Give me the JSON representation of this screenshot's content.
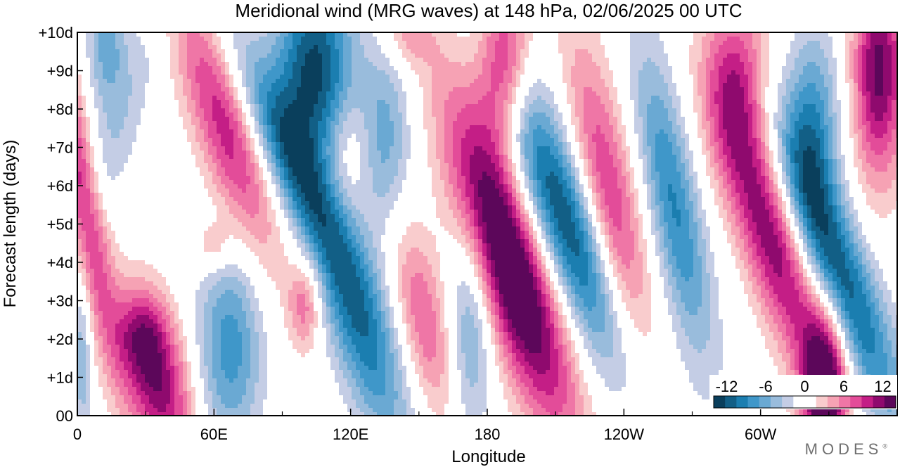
{
  "chart_data": {
    "type": "heatmap",
    "title": "Meridional wind (MRG waves) at  148 hPa,  02/06/2025  00 UTC",
    "xlabel": "Longitude",
    "ylabel": "Forecast length (days)",
    "x_ticks": [
      "0",
      "60E",
      "120E",
      "180",
      "120W",
      "60W"
    ],
    "x_tick_values": [
      0,
      60,
      120,
      180,
      240,
      300
    ],
    "xlim": [
      0,
      360
    ],
    "y_ticks": [
      "00",
      "+1d",
      "+2d",
      "+3d",
      "+4d",
      "+5d",
      "+6d",
      "+7d",
      "+8d",
      "+9d",
      "+10d"
    ],
    "ylim": [
      0,
      10
    ],
    "colorbar": {
      "tick_labels": [
        "-12",
        "-6",
        "0",
        "6",
        "12"
      ],
      "tick_values": [
        -12,
        -6,
        0,
        6,
        12
      ],
      "range": [
        -14,
        14
      ],
      "colors": [
        "#0a3f5c",
        "#125f86",
        "#1b7eb0",
        "#3f97c9",
        "#6aa9d3",
        "#99bcdc",
        "#c4cde5",
        "#ffffff",
        "#ffffff",
        "#f9cccd",
        "#f6a2b4",
        "#ef76a6",
        "#e34c99",
        "#c41e86",
        "#8f0a6e",
        "#5c075a"
      ]
    },
    "features": [
      {
        "lon": 2,
        "day": 5.8,
        "value": 10,
        "lon_width": 6,
        "day_width": 3.0,
        "tilt": -3
      },
      {
        "lon": 2,
        "day": 1.5,
        "value": -5,
        "lon_width": 3,
        "day_width": 1.5,
        "tilt": 0
      },
      {
        "lon": 13,
        "day": 9.7,
        "value": -6,
        "lon_width": 6,
        "day_width": 1.2,
        "tilt": 0
      },
      {
        "lon": 18,
        "day": 7.5,
        "value": -3,
        "lon_width": 8,
        "day_width": 2.2,
        "tilt": 5
      },
      {
        "lon": 35,
        "day": 0.9,
        "value": 12,
        "lon_width": 10,
        "day_width": 1.5,
        "tilt": -3
      },
      {
        "lon": 28,
        "day": 2.2,
        "value": 5,
        "lon_width": 8,
        "day_width": 0.8,
        "tilt": 0
      },
      {
        "lon": 65,
        "day": 7.6,
        "value": 10,
        "lon_width": 10,
        "day_width": 2.5,
        "tilt": -5
      },
      {
        "lon": 67,
        "day": 1.8,
        "value": -8,
        "lon_width": 10,
        "day_width": 1.8,
        "tilt": 0
      },
      {
        "lon": 60,
        "day": 4.4,
        "value": 4,
        "lon_width": 6,
        "day_width": 0.5,
        "tilt": 0
      },
      {
        "lon": 104,
        "day": 9.0,
        "value": -13,
        "lon_width": 12,
        "day_width": 1.8,
        "tilt": 0
      },
      {
        "lon": 96,
        "day": 6.5,
        "value": -9,
        "lon_width": 10,
        "day_width": 2.5,
        "tilt": -8
      },
      {
        "lon": 100,
        "day": 2.9,
        "value": 6,
        "lon_width": 5,
        "day_width": 0.8,
        "tilt": 0
      },
      {
        "lon": 124,
        "day": 2.2,
        "value": -9,
        "lon_width": 10,
        "day_width": 2.2,
        "tilt": -5
      },
      {
        "lon": 119,
        "day": 7.0,
        "value": 3,
        "lon_width": 7,
        "day_width": 1.0,
        "tilt": 0
      },
      {
        "lon": 135,
        "day": 7.2,
        "value": -6,
        "lon_width": 8,
        "day_width": 1.8,
        "tilt": 0
      },
      {
        "lon": 145,
        "day": 9.9,
        "value": 4,
        "lon_width": 8,
        "day_width": 0.6,
        "tilt": 0
      },
      {
        "lon": 152,
        "day": 2.5,
        "value": 7,
        "lon_width": 8,
        "day_width": 1.8,
        "tilt": -3
      },
      {
        "lon": 173,
        "day": 2.4,
        "value": -6,
        "lon_width": 7,
        "day_width": 2.0,
        "tilt": 0
      },
      {
        "lon": 190,
        "day": 4.0,
        "value": 17,
        "lon_width": 12,
        "day_width": 3.0,
        "tilt": -5
      },
      {
        "lon": 187,
        "day": 9.2,
        "value": 11,
        "lon_width": 8,
        "day_width": 1.5,
        "tilt": 0
      },
      {
        "lon": 215,
        "day": 5.0,
        "value": -13,
        "lon_width": 12,
        "day_width": 2.8,
        "tilt": -6
      },
      {
        "lon": 234,
        "day": 5.3,
        "value": 10,
        "lon_width": 9,
        "day_width": 3.0,
        "tilt": -3
      },
      {
        "lon": 262,
        "day": 5.5,
        "value": -9,
        "lon_width": 8,
        "day_width": 2.8,
        "tilt": -3
      },
      {
        "lon": 305,
        "day": 4.6,
        "value": 12,
        "lon_width": 10,
        "day_width": 2.5,
        "tilt": -5
      },
      {
        "lon": 290,
        "day": 8.8,
        "value": 9,
        "lon_width": 10,
        "day_width": 1.6,
        "tilt": 0
      },
      {
        "lon": 335,
        "day": 3.7,
        "value": -12,
        "lon_width": 10,
        "day_width": 2.8,
        "tilt": -6
      },
      {
        "lon": 328,
        "day": 0.7,
        "value": 15,
        "lon_width": 7,
        "day_width": 1.4,
        "tilt": 0
      },
      {
        "lon": 352,
        "day": 9.0,
        "value": 13,
        "lon_width": 8,
        "day_width": 2.0,
        "tilt": 0
      },
      {
        "lon": 323,
        "day": 7.5,
        "value": -8,
        "lon_width": 8,
        "day_width": 1.8,
        "tilt": 0
      }
    ]
  },
  "branding": {
    "name": "MODES",
    "mark": "®"
  }
}
